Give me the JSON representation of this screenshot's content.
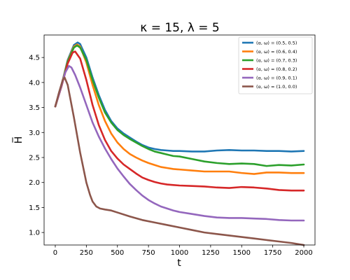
{
  "chart_data": {
    "type": "line",
    "title": "κ = 15, λ = 5",
    "xlabel": "t",
    "ylabel": "H̅",
    "xlim": [
      -90,
      2090
    ],
    "ylim": [
      0.75,
      4.95
    ],
    "xticks": [
      0,
      250,
      500,
      750,
      1000,
      1250,
      1500,
      1750,
      2000
    ],
    "yticks": [
      1.0,
      1.5,
      2.0,
      2.5,
      3.0,
      3.5,
      4.0,
      4.5
    ],
    "xtick_labels": [
      "0",
      "250",
      "500",
      "750",
      "1000",
      "1250",
      "1500",
      "1750",
      "2000"
    ],
    "ytick_labels": [
      "1.0",
      "1.5",
      "2.0",
      "2.5",
      "3.0",
      "3.5",
      "4.0",
      "4.5"
    ],
    "grid": false,
    "legend_position": "top-right",
    "series": [
      {
        "name": "(α, ω) = (0.5, 0.5)",
        "color": "#1f77b4",
        "x": [
          0,
          50,
          100,
          150,
          180,
          200,
          250,
          300,
          350,
          400,
          450,
          500,
          550,
          600,
          650,
          700,
          750,
          800,
          850,
          900,
          950,
          1000,
          1100,
          1200,
          1300,
          1400,
          1500,
          1600,
          1700,
          1800,
          1900,
          2000
        ],
        "y": [
          3.52,
          3.95,
          4.45,
          4.75,
          4.8,
          4.77,
          4.5,
          4.1,
          3.75,
          3.45,
          3.23,
          3.08,
          2.98,
          2.9,
          2.82,
          2.75,
          2.7,
          2.67,
          2.65,
          2.64,
          2.63,
          2.63,
          2.62,
          2.62,
          2.64,
          2.65,
          2.64,
          2.64,
          2.63,
          2.63,
          2.62,
          2.63
        ]
      },
      {
        "name": "(α, ω) = (0.6, 0.4)",
        "color": "#ff7f0e",
        "x": [
          0,
          50,
          100,
          150,
          175,
          200,
          250,
          300,
          350,
          400,
          450,
          500,
          550,
          600,
          650,
          700,
          750,
          800,
          850,
          900,
          950,
          1000,
          1100,
          1200,
          1300,
          1400,
          1500,
          1600,
          1700,
          1800,
          1900,
          2000
        ],
        "y": [
          3.52,
          3.95,
          4.43,
          4.72,
          4.76,
          4.72,
          4.4,
          3.95,
          3.55,
          3.23,
          2.98,
          2.8,
          2.67,
          2.57,
          2.5,
          2.44,
          2.39,
          2.35,
          2.31,
          2.29,
          2.27,
          2.26,
          2.24,
          2.22,
          2.22,
          2.22,
          2.19,
          2.17,
          2.2,
          2.2,
          2.19,
          2.19
        ]
      },
      {
        "name": "(α, ω) = (0.7, 0.3)",
        "color": "#2ca02c",
        "x": [
          0,
          50,
          100,
          150,
          175,
          200,
          250,
          300,
          350,
          400,
          450,
          500,
          550,
          600,
          650,
          700,
          750,
          800,
          850,
          900,
          950,
          1000,
          1100,
          1200,
          1300,
          1400,
          1500,
          1600,
          1700,
          1800,
          1900,
          2000
        ],
        "y": [
          3.52,
          3.93,
          4.42,
          4.7,
          4.74,
          4.7,
          4.45,
          4.05,
          3.7,
          3.4,
          3.2,
          3.05,
          2.95,
          2.87,
          2.8,
          2.73,
          2.67,
          2.62,
          2.59,
          2.56,
          2.53,
          2.52,
          2.47,
          2.42,
          2.39,
          2.37,
          2.38,
          2.37,
          2.33,
          2.35,
          2.34,
          2.36
        ]
      },
      {
        "name": "(α, ω) = (0.8, 0.2)",
        "color": "#d62728",
        "x": [
          0,
          50,
          100,
          140,
          160,
          200,
          250,
          300,
          350,
          400,
          450,
          500,
          550,
          600,
          650,
          700,
          750,
          800,
          850,
          900,
          950,
          1000,
          1100,
          1200,
          1300,
          1400,
          1500,
          1600,
          1700,
          1800,
          1900,
          2000
        ],
        "y": [
          3.52,
          3.92,
          4.38,
          4.6,
          4.62,
          4.48,
          4.05,
          3.55,
          3.15,
          2.85,
          2.63,
          2.48,
          2.36,
          2.27,
          2.18,
          2.1,
          2.05,
          2.01,
          1.98,
          1.96,
          1.95,
          1.94,
          1.93,
          1.92,
          1.9,
          1.89,
          1.91,
          1.9,
          1.88,
          1.85,
          1.84,
          1.84
        ]
      },
      {
        "name": "(α, ω) = (0.9, 0.1)",
        "color": "#9467bd",
        "x": [
          0,
          40,
          80,
          110,
          130,
          160,
          200,
          250,
          300,
          350,
          400,
          450,
          500,
          550,
          600,
          650,
          700,
          750,
          800,
          850,
          900,
          950,
          1000,
          1100,
          1200,
          1300,
          1400,
          1500,
          1600,
          1700,
          1800,
          1900,
          2000
        ],
        "y": [
          3.52,
          3.85,
          4.2,
          4.33,
          4.3,
          4.15,
          3.9,
          3.55,
          3.2,
          2.92,
          2.68,
          2.47,
          2.28,
          2.12,
          1.97,
          1.85,
          1.74,
          1.65,
          1.58,
          1.52,
          1.48,
          1.44,
          1.41,
          1.37,
          1.33,
          1.3,
          1.29,
          1.29,
          1.28,
          1.27,
          1.25,
          1.24,
          1.24
        ]
      },
      {
        "name": "(α, ω) = (1.0, 0.0)",
        "color": "#8c564b",
        "x": [
          0,
          30,
          60,
          75,
          100,
          150,
          200,
          250,
          280,
          300,
          330,
          360,
          400,
          450,
          500,
          600,
          700,
          800,
          900,
          1000,
          1100,
          1200,
          1300,
          1400,
          1500,
          1600,
          1700,
          1800,
          1900,
          2000
        ],
        "y": [
          3.52,
          3.8,
          4.05,
          4.1,
          3.95,
          3.3,
          2.6,
          2.0,
          1.75,
          1.62,
          1.52,
          1.48,
          1.46,
          1.44,
          1.4,
          1.32,
          1.25,
          1.2,
          1.15,
          1.1,
          1.05,
          1.0,
          0.97,
          0.94,
          0.91,
          0.88,
          0.85,
          0.82,
          0.79,
          0.75
        ]
      }
    ]
  }
}
